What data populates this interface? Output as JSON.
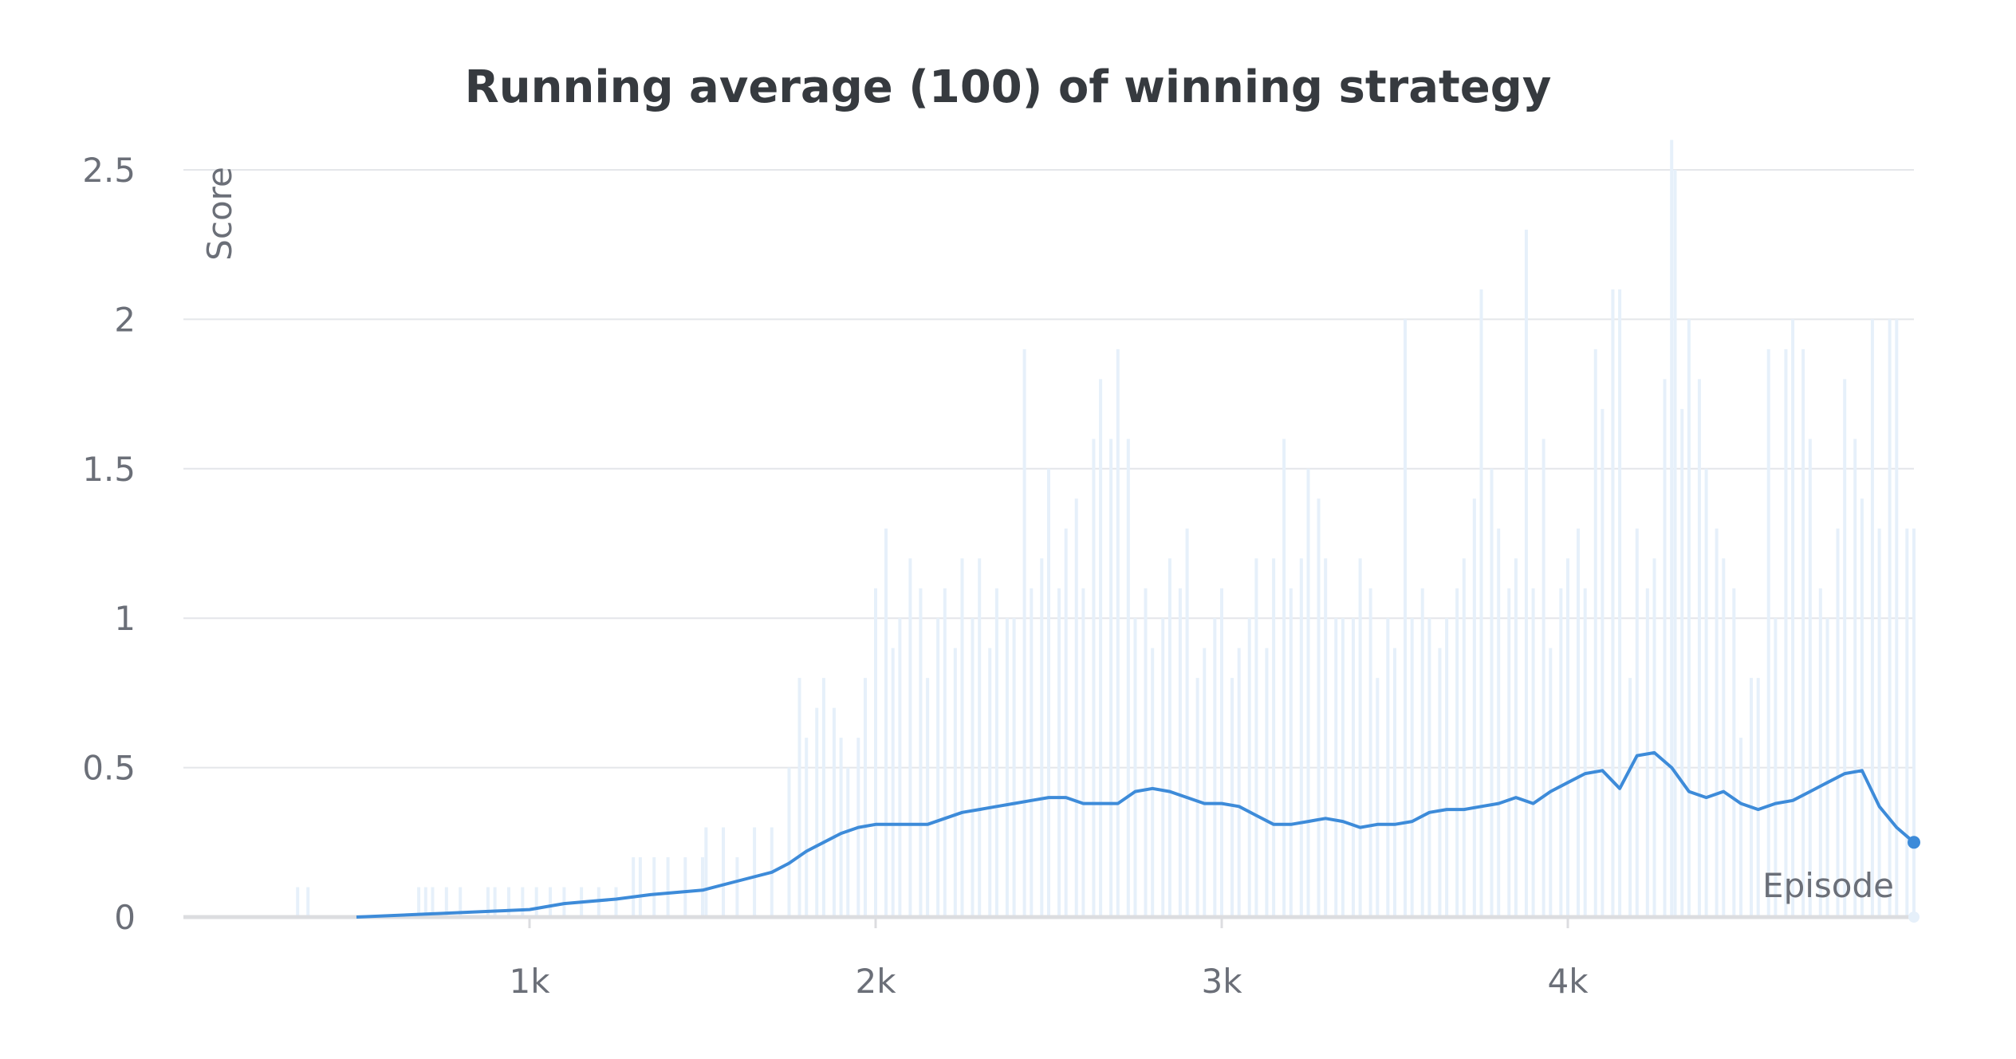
{
  "chart_data": {
    "type": "line",
    "title": "Running average (100) of winning strategy",
    "xlabel": "Episode",
    "ylabel": "Score",
    "xlim": [
      0,
      5000
    ],
    "ylim": [
      0,
      2.5
    ],
    "x_ticks": [
      {
        "value": 1000,
        "label": "1k"
      },
      {
        "value": 2000,
        "label": "2k"
      },
      {
        "value": 3000,
        "label": "3k"
      },
      {
        "value": 4000,
        "label": "4k"
      }
    ],
    "y_ticks": [
      {
        "value": 0,
        "label": "0"
      },
      {
        "value": 0.5,
        "label": "0.5"
      },
      {
        "value": 1,
        "label": "1"
      },
      {
        "value": 1.5,
        "label": "1.5"
      },
      {
        "value": 2,
        "label": "2"
      },
      {
        "value": 2.5,
        "label": "2.5"
      }
    ],
    "grid": true,
    "colors": {
      "line": "#3d8bd9",
      "raw": "#e6f0fa",
      "grid": "#e4e6ea",
      "axis": "#dcdde0"
    },
    "series": [
      {
        "role": "smoothed",
        "x": [
          500,
          700,
          900,
          1000,
          1100,
          1250,
          1350,
          1500,
          1600,
          1700,
          1750,
          1800,
          1850,
          1900,
          1950,
          2000,
          2050,
          2100,
          2150,
          2200,
          2250,
          2300,
          2350,
          2400,
          2450,
          2500,
          2550,
          2600,
          2650,
          2700,
          2750,
          2800,
          2850,
          2900,
          2950,
          3000,
          3050,
          3100,
          3150,
          3200,
          3250,
          3300,
          3350,
          3400,
          3450,
          3500,
          3550,
          3600,
          3650,
          3700,
          3750,
          3800,
          3850,
          3900,
          3950,
          4000,
          4050,
          4100,
          4150,
          4200,
          4250,
          4300,
          4350,
          4400,
          4450,
          4500,
          4550,
          4600,
          4650,
          4700,
          4750,
          4800,
          4850,
          4900,
          4950,
          5000
        ],
        "y": [
          0.0,
          0.01,
          0.02,
          0.025,
          0.045,
          0.06,
          0.075,
          0.09,
          0.12,
          0.15,
          0.18,
          0.22,
          0.25,
          0.28,
          0.3,
          0.31,
          0.31,
          0.31,
          0.31,
          0.33,
          0.35,
          0.36,
          0.37,
          0.38,
          0.39,
          0.4,
          0.4,
          0.38,
          0.38,
          0.38,
          0.42,
          0.43,
          0.42,
          0.4,
          0.38,
          0.38,
          0.37,
          0.34,
          0.31,
          0.31,
          0.32,
          0.33,
          0.32,
          0.3,
          0.31,
          0.31,
          0.32,
          0.35,
          0.36,
          0.36,
          0.37,
          0.38,
          0.4,
          0.38,
          0.42,
          0.45,
          0.48,
          0.49,
          0.43,
          0.54,
          0.55,
          0.5,
          0.42,
          0.4,
          0.42,
          0.38,
          0.36,
          0.38,
          0.39,
          0.42,
          0.45,
          0.48,
          0.49,
          0.37,
          0.3,
          0.25
        ]
      },
      {
        "role": "raw",
        "x": [
          330,
          360,
          680,
          700,
          720,
          760,
          800,
          880,
          900,
          940,
          980,
          1020,
          1060,
          1100,
          1150,
          1200,
          1250,
          1300,
          1320,
          1360,
          1400,
          1450,
          1500,
          1510,
          1560,
          1600,
          1650,
          1700,
          1750,
          1780,
          1800,
          1830,
          1850,
          1880,
          1900,
          1920,
          1950,
          1970,
          2000,
          2030,
          2050,
          2070,
          2100,
          2130,
          2150,
          2180,
          2200,
          2230,
          2250,
          2280,
          2300,
          2330,
          2350,
          2380,
          2400,
          2430,
          2450,
          2480,
          2500,
          2530,
          2550,
          2580,
          2600,
          2630,
          2650,
          2680,
          2700,
          2730,
          2750,
          2780,
          2800,
          2830,
          2850,
          2880,
          2900,
          2930,
          2950,
          2980,
          3000,
          3030,
          3050,
          3080,
          3100,
          3130,
          3150,
          3180,
          3200,
          3230,
          3250,
          3280,
          3300,
          3330,
          3350,
          3380,
          3400,
          3430,
          3450,
          3480,
          3500,
          3530,
          3550,
          3580,
          3600,
          3630,
          3650,
          3680,
          3700,
          3730,
          3750,
          3780,
          3800,
          3830,
          3850,
          3880,
          3900,
          3930,
          3950,
          3980,
          4000,
          4030,
          4050,
          4080,
          4100,
          4130,
          4150,
          4180,
          4200,
          4230,
          4250,
          4280,
          4300,
          4310,
          4330,
          4350,
          4380,
          4400,
          4430,
          4450,
          4480,
          4500,
          4530,
          4550,
          4580,
          4600,
          4630,
          4650,
          4680,
          4700,
          4730,
          4750,
          4780,
          4800,
          4830,
          4850,
          4880,
          4900,
          4930,
          4950,
          4980,
          5000
        ],
        "y": [
          0.1,
          0.1,
          0.1,
          0.1,
          0.1,
          0.1,
          0.1,
          0.1,
          0.1,
          0.1,
          0.1,
          0.1,
          0.1,
          0.1,
          0.1,
          0.1,
          0.1,
          0.2,
          0.2,
          0.2,
          0.2,
          0.2,
          0.2,
          0.3,
          0.3,
          0.2,
          0.3,
          0.3,
          0.5,
          0.8,
          0.6,
          0.7,
          0.8,
          0.7,
          0.6,
          0.5,
          0.6,
          0.8,
          1.1,
          1.3,
          0.9,
          1.0,
          1.2,
          1.1,
          0.8,
          1.0,
          1.1,
          0.9,
          1.2,
          1.0,
          1.2,
          0.9,
          1.1,
          1.0,
          1.0,
          1.9,
          1.1,
          1.2,
          1.5,
          1.1,
          1.3,
          1.4,
          1.1,
          1.6,
          1.8,
          1.6,
          1.9,
          1.6,
          1.0,
          1.1,
          0.9,
          1.0,
          1.2,
          1.1,
          1.3,
          0.8,
          0.9,
          1.0,
          1.1,
          0.8,
          0.9,
          1.0,
          1.2,
          0.9,
          1.2,
          1.6,
          1.1,
          1.2,
          1.5,
          1.4,
          1.2,
          1.0,
          1.0,
          1.0,
          1.2,
          1.1,
          0.8,
          1.0,
          0.9,
          2.0,
          1.0,
          1.1,
          1.0,
          0.9,
          1.0,
          1.1,
          1.2,
          1.4,
          2.1,
          1.5,
          1.3,
          1.1,
          1.2,
          2.3,
          1.1,
          1.6,
          0.9,
          1.1,
          1.2,
          1.3,
          1.1,
          1.9,
          1.7,
          2.1,
          2.1,
          0.8,
          1.3,
          1.1,
          1.2,
          1.8,
          2.6,
          2.5,
          1.7,
          2.0,
          1.8,
          1.5,
          1.3,
          1.2,
          1.1,
          0.6,
          0.8,
          0.8,
          1.9,
          1.0,
          1.9,
          2.0,
          1.9,
          1.6,
          1.1,
          1.0,
          1.3,
          1.8,
          1.6,
          1.4,
          2.0,
          1.3,
          2.0,
          2.0,
          1.3,
          1.3
        ]
      }
    ]
  }
}
